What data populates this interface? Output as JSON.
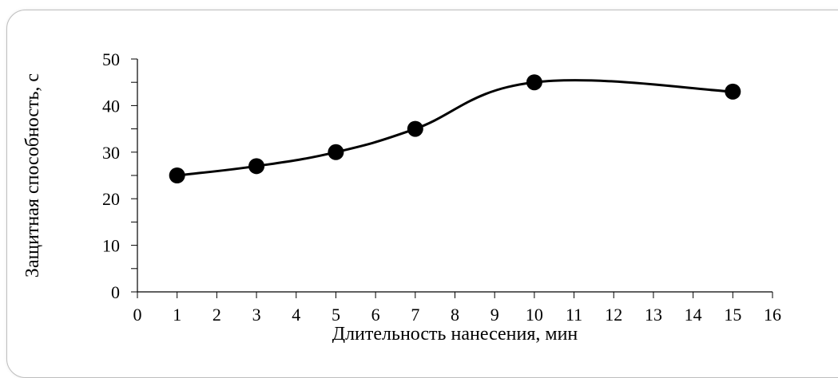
{
  "chart_data": {
    "type": "line",
    "title": "",
    "xlabel": "Длительность нанесения, мин",
    "ylabel": "Защитная способность, с",
    "xlim": [
      0,
      16
    ],
    "ylim": [
      0,
      50
    ],
    "x_ticks": [
      0,
      1,
      2,
      3,
      4,
      5,
      6,
      7,
      8,
      9,
      10,
      11,
      12,
      13,
      14,
      15,
      16
    ],
    "y_ticks": [
      0,
      10,
      20,
      30,
      40,
      50
    ],
    "x_tick_labels": [
      "0",
      "1",
      "2",
      "3",
      "4",
      "5",
      "6",
      "7",
      "8",
      "9",
      "10",
      "11",
      "12",
      "13",
      "14",
      "15",
      "16"
    ],
    "y_tick_labels": [
      "0",
      "10",
      "20",
      "30",
      "40",
      "50"
    ],
    "grid": false,
    "line_style": "smooth",
    "marker": "filled-circle",
    "series": [
      {
        "x": [
          1,
          3,
          5,
          7,
          10,
          15
        ],
        "y": [
          25,
          27,
          30,
          35,
          45,
          43
        ]
      }
    ],
    "colors": {
      "line": "#000000",
      "marker": "#000000",
      "axis": "#000000"
    }
  }
}
